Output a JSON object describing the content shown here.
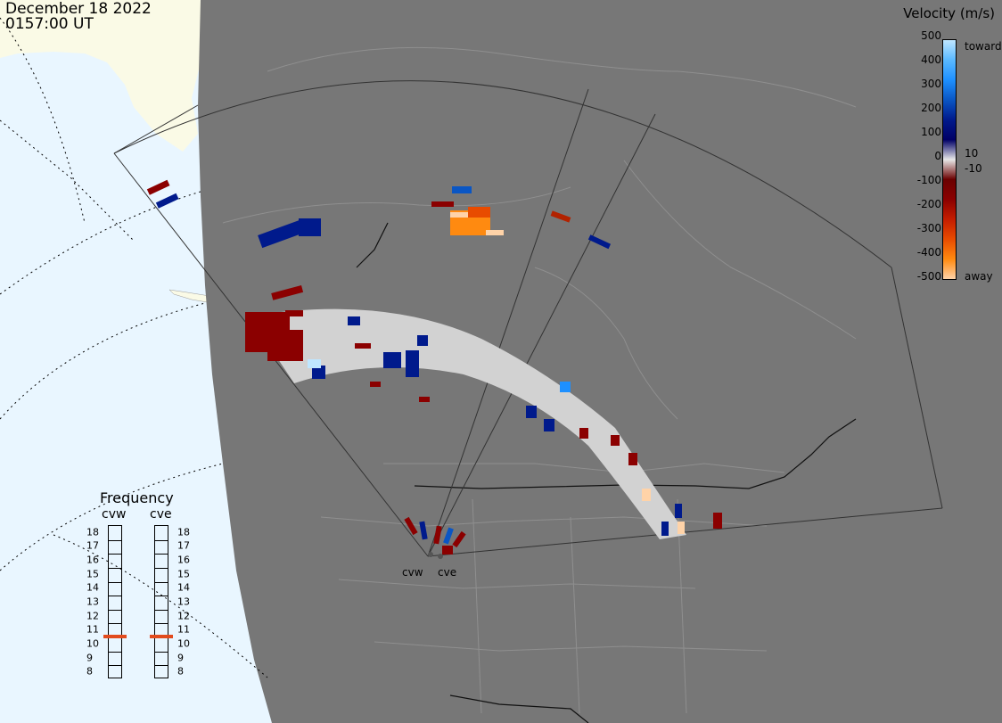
{
  "header": {
    "date": "December 18 2022",
    "time": "0157:00 UT"
  },
  "velocity_scale": {
    "title": "Velocity (m/s)",
    "ticks": [
      "500",
      "400",
      "300",
      "200",
      "100",
      "0",
      "-100",
      "-200",
      "-300",
      "-400",
      "-500"
    ],
    "toward_label": "toward",
    "away_label": "away",
    "pos_threshold": "10",
    "neg_threshold": "-10",
    "colors": [
      "#bfe6ff",
      "#5ab9ff",
      "#1e90ff",
      "#0a56c4",
      "#001a8c",
      "#000066",
      "#e8e8e8",
      "#6a0000",
      "#8b0000",
      "#c41d00",
      "#e84b00",
      "#ff8a10",
      "#ffd3a8"
    ]
  },
  "frequency": {
    "title": "Frequency",
    "radars": [
      "cvw",
      "cve"
    ],
    "ticks": [
      "18",
      "17",
      "16",
      "15",
      "14",
      "13",
      "12",
      "11",
      "10",
      "9",
      "8"
    ],
    "current_mhz": [
      10.5,
      10.5
    ]
  },
  "sites": [
    "cvw",
    "cve"
  ],
  "colors": {
    "ocean": "#e9f6ff",
    "land": "#fafae6",
    "night": "#777777",
    "low_velocity": "#d2d2d2",
    "gs_gray": "#8c8c8c"
  }
}
